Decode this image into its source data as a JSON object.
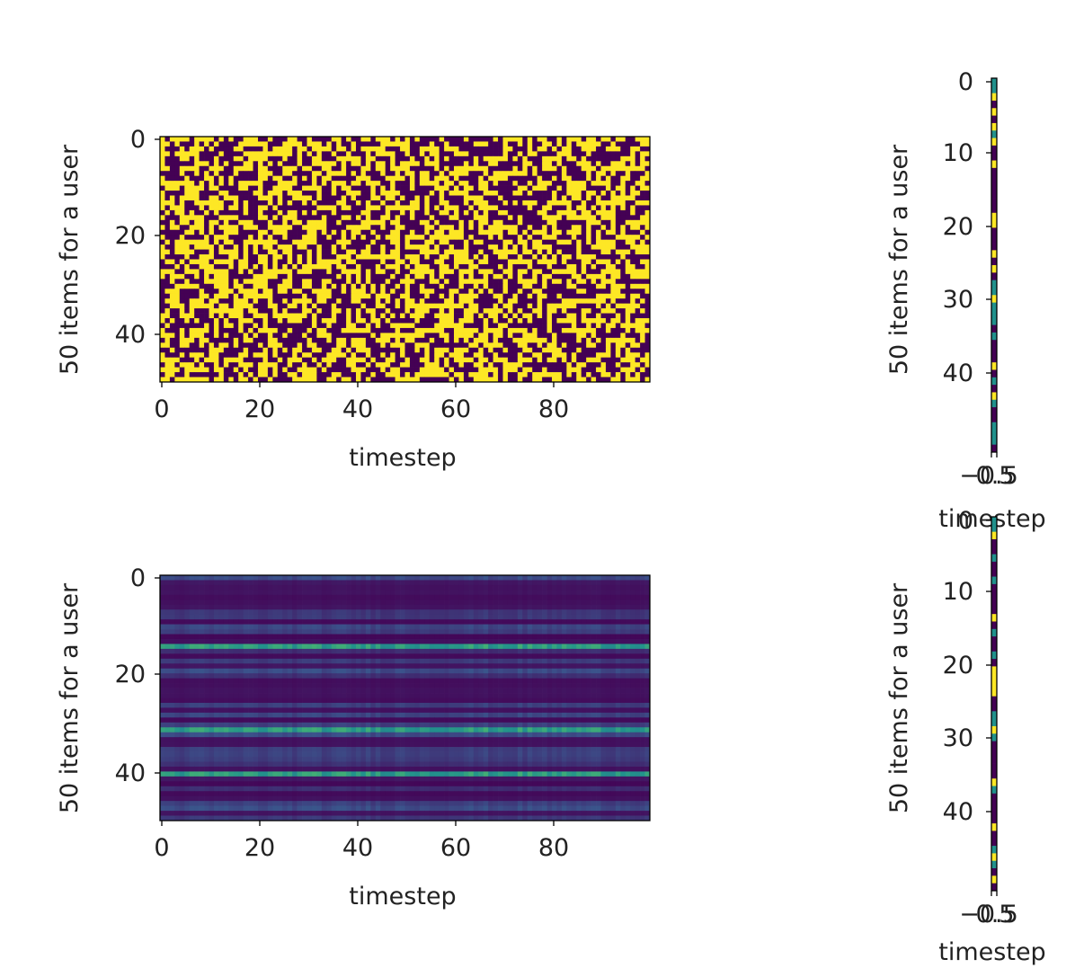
{
  "chart_data": [
    {
      "type": "heatmap",
      "panel": "top-left",
      "xlabel": "timestep",
      "ylabel": "50 items for a user",
      "xticks": [
        "0",
        "20",
        "40",
        "60",
        "80"
      ],
      "yticks": [
        "0",
        "20",
        "40"
      ],
      "xlim": [
        -0.5,
        99.5
      ],
      "ylim": [
        49.5,
        -0.5
      ],
      "rows": 50,
      "cols": 100,
      "value_range": [
        0,
        1
      ],
      "pattern": "random binary (values 0 or 1)",
      "colormap": "viridis"
    },
    {
      "type": "heatmap",
      "panel": "top-right",
      "xlabel": "timestep",
      "ylabel": "50 items for a user",
      "xticks": [
        "−0.5",
        "0.5"
      ],
      "yticks": [
        "0",
        "10",
        "20",
        "30",
        "40"
      ],
      "xlim": [
        -0.5,
        0.5
      ],
      "ylim": [
        49.5,
        -0.5
      ],
      "rows": 50,
      "cols": 1,
      "value_range": [
        0,
        1
      ],
      "colormap": "viridis"
    },
    {
      "type": "heatmap",
      "panel": "bottom-left",
      "xlabel": "timestep",
      "ylabel": "50 items for a user",
      "xticks": [
        "0",
        "20",
        "40",
        "60",
        "80"
      ],
      "yticks": [
        "0",
        "20",
        "40"
      ],
      "xlim": [
        -0.5,
        99.5
      ],
      "ylim": [
        49.5,
        -0.5
      ],
      "rows": 50,
      "cols": 100,
      "bright_rows": [
        14,
        31,
        40
      ],
      "pattern": "horizontal bands, mostly dark with a few bright rows",
      "colormap": "viridis"
    },
    {
      "type": "heatmap",
      "panel": "bottom-right",
      "xlabel": "timestep",
      "ylabel": "50 items for a user",
      "xticks": [
        "−0.5",
        "0.5"
      ],
      "yticks": [
        "0",
        "10",
        "20",
        "30",
        "40"
      ],
      "xlim": [
        -0.5,
        0.5
      ],
      "ylim": [
        49.5,
        -0.5
      ],
      "rows": 50,
      "cols": 1,
      "value_range": [
        0,
        1
      ],
      "colormap": "viridis"
    }
  ],
  "colors": {
    "viridis_low": "#440154",
    "viridis_mid": "#21918c",
    "viridis_high": "#fde725"
  }
}
